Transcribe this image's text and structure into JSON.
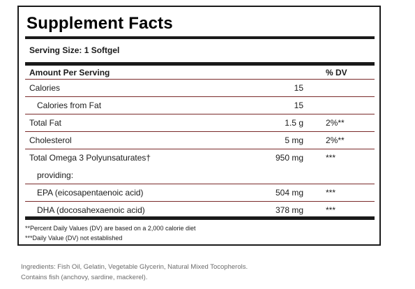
{
  "panel": {
    "title": "Supplement Facts",
    "serving_size": "Serving Size: 1 Softgel",
    "header": {
      "amount_label": "Amount Per Serving",
      "dv_label": "% DV"
    },
    "rows": [
      {
        "name": "Calories",
        "amount": "15",
        "dv": ""
      },
      {
        "name": "Calories from Fat",
        "amount": "15",
        "dv": ""
      },
      {
        "name": "Total Fat",
        "amount": "1.5 g",
        "dv": "2%**"
      },
      {
        "name": "Cholesterol",
        "amount": "5 mg",
        "dv": "2%**"
      },
      {
        "name": "Total Omega 3 Polyunsaturates†",
        "amount": "950 mg",
        "dv": "***"
      },
      {
        "name": "providing:",
        "amount": "",
        "dv": ""
      },
      {
        "name": "EPA (eicosapentaenoic acid)",
        "amount": "504 mg",
        "dv": "***"
      },
      {
        "name": "DHA (docosahexaenoic acid)",
        "amount": "378 mg",
        "dv": "***"
      }
    ],
    "footnotes": [
      "**Percent Daily Values (DV) are based on a 2,000 calorie diet",
      "***Daily Value (DV) not established"
    ]
  },
  "ingredients": {
    "line1": "Ingredients: Fish Oil, Gelatin, Vegetable Glycerin, Natural Mixed Tocopherols.",
    "line2": "Contains fish (anchovy, sardine, mackerel)."
  },
  "colors": {
    "border": "#1a1a1a",
    "row_rule": "#7a2a2a",
    "ingredients_text": "#6b6b6b"
  }
}
